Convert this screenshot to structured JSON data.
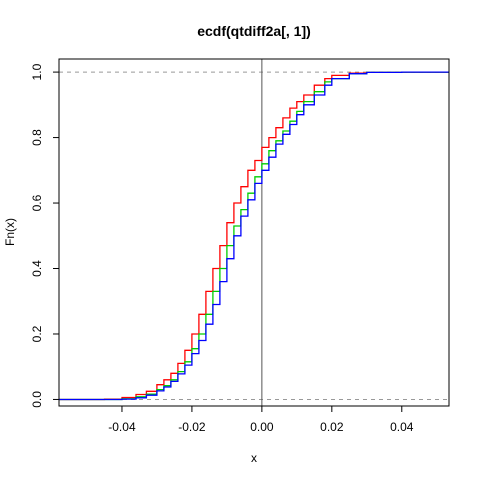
{
  "chart_data": {
    "type": "line",
    "title": "ecdf(qtdiff2a[, 1])",
    "xlabel": "x",
    "ylabel": "Fn(x)",
    "xlim": [
      -0.058,
      0.0535
    ],
    "ylim": [
      -0.02,
      1.04
    ],
    "x_ticks": [
      -0.04,
      -0.02,
      0.0,
      0.02,
      0.04
    ],
    "x_tick_labels": [
      "-0.04",
      "-0.02",
      "0.00",
      "0.02",
      "0.04"
    ],
    "y_ticks": [
      0.0,
      0.2,
      0.4,
      0.6,
      0.8,
      1.0
    ],
    "y_tick_labels": [
      "0.0",
      "0.2",
      "0.4",
      "0.6",
      "0.8",
      "1.0"
    ],
    "reference_lines": {
      "horizontal_dashed": [
        0,
        1
      ],
      "vertical_solid": [
        0
      ]
    },
    "colors": {
      "red": "#ff0000",
      "green": "#00cd00",
      "blue": "#0000ff",
      "axis": "#000000",
      "reference": "#999999",
      "vline": "#555555"
    },
    "series": [
      {
        "color": "#ff0000",
        "x": [
          -0.058,
          -0.05,
          -0.045,
          -0.04,
          -0.036,
          -0.033,
          -0.03,
          -0.028,
          -0.026,
          -0.024,
          -0.022,
          -0.02,
          -0.018,
          -0.016,
          -0.014,
          -0.012,
          -0.01,
          -0.008,
          -0.006,
          -0.004,
          -0.002,
          0.0,
          0.002,
          0.004,
          0.006,
          0.008,
          0.01,
          0.012,
          0.015,
          0.018,
          0.02,
          0.025,
          0.03,
          0.04,
          0.0535
        ],
        "y": [
          0.0,
          0.0,
          0.001,
          0.006,
          0.015,
          0.025,
          0.045,
          0.06,
          0.08,
          0.11,
          0.15,
          0.2,
          0.26,
          0.33,
          0.4,
          0.47,
          0.54,
          0.6,
          0.65,
          0.7,
          0.73,
          0.77,
          0.8,
          0.83,
          0.86,
          0.89,
          0.91,
          0.93,
          0.96,
          0.98,
          0.99,
          0.997,
          0.999,
          1.0,
          1.0
        ]
      },
      {
        "color": "#00cd00",
        "x": [
          -0.058,
          -0.05,
          -0.045,
          -0.04,
          -0.036,
          -0.033,
          -0.03,
          -0.028,
          -0.026,
          -0.024,
          -0.022,
          -0.02,
          -0.018,
          -0.016,
          -0.014,
          -0.012,
          -0.01,
          -0.008,
          -0.006,
          -0.004,
          -0.002,
          0.0,
          0.002,
          0.004,
          0.006,
          0.008,
          0.01,
          0.012,
          0.015,
          0.018,
          0.02,
          0.025,
          0.03,
          0.04,
          0.0535
        ],
        "y": [
          0.0,
          0.0,
          0.0,
          0.002,
          0.008,
          0.016,
          0.03,
          0.042,
          0.06,
          0.085,
          0.115,
          0.155,
          0.2,
          0.26,
          0.33,
          0.4,
          0.47,
          0.53,
          0.58,
          0.63,
          0.68,
          0.72,
          0.76,
          0.79,
          0.82,
          0.85,
          0.88,
          0.91,
          0.94,
          0.97,
          0.98,
          0.995,
          0.999,
          1.0,
          1.0
        ]
      },
      {
        "color": "#0000ff",
        "x": [
          -0.058,
          -0.05,
          -0.045,
          -0.04,
          -0.036,
          -0.033,
          -0.03,
          -0.028,
          -0.026,
          -0.024,
          -0.022,
          -0.02,
          -0.018,
          -0.016,
          -0.014,
          -0.012,
          -0.01,
          -0.008,
          -0.006,
          -0.004,
          -0.002,
          0.0,
          0.002,
          0.004,
          0.006,
          0.008,
          0.01,
          0.012,
          0.015,
          0.018,
          0.02,
          0.025,
          0.03,
          0.04,
          0.0535
        ],
        "y": [
          0.0,
          0.0,
          0.0,
          0.001,
          0.005,
          0.013,
          0.026,
          0.038,
          0.055,
          0.078,
          0.105,
          0.14,
          0.18,
          0.23,
          0.29,
          0.36,
          0.43,
          0.5,
          0.56,
          0.61,
          0.66,
          0.7,
          0.74,
          0.78,
          0.81,
          0.84,
          0.87,
          0.9,
          0.93,
          0.96,
          0.98,
          0.995,
          0.999,
          1.0,
          1.0
        ]
      }
    ]
  }
}
